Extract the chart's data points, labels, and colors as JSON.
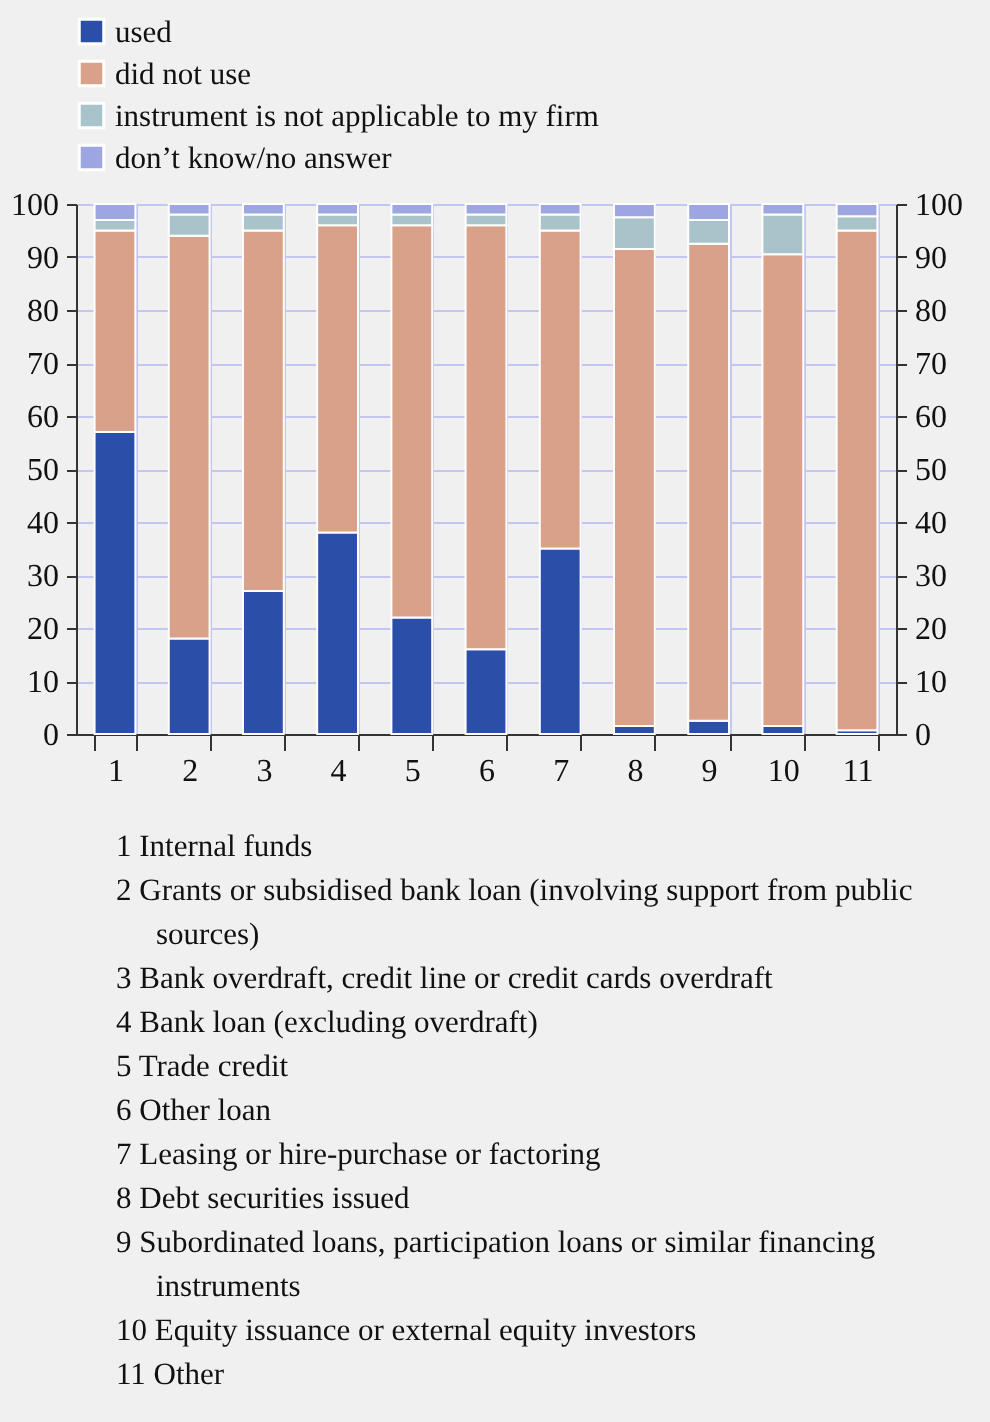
{
  "chart_data": {
    "type": "bar",
    "stacked": true,
    "categories": [
      "1",
      "2",
      "3",
      "4",
      "5",
      "6",
      "7",
      "8",
      "9",
      "10",
      "11"
    ],
    "series": [
      {
        "name": "used",
        "color": "#2b4ea8",
        "values": [
          57,
          18,
          27,
          38,
          22,
          16,
          35,
          1.5,
          2.5,
          1.5,
          0.7
        ]
      },
      {
        "name": "did not use",
        "color": "#d9a08a",
        "values": [
          38,
          76,
          68,
          58,
          74,
          80,
          60,
          90,
          90,
          89,
          94.3
        ]
      },
      {
        "name": "instrument is not applicable to my firm",
        "color": "#a9c3cb",
        "values": [
          2,
          4,
          3,
          2,
          2,
          2,
          3,
          6,
          4.5,
          7.5,
          2.7
        ]
      },
      {
        "name": "don’t know/no answer",
        "color": "#9ea6e2",
        "values": [
          3,
          2,
          2,
          2,
          2,
          2,
          2,
          2.5,
          3,
          2,
          2.3
        ]
      }
    ],
    "ylim": [
      0,
      100
    ],
    "yticks": [
      0,
      10,
      20,
      30,
      40,
      50,
      60,
      70,
      80,
      90,
      100
    ],
    "y2lim": [
      0,
      100
    ],
    "y2ticks": [
      0,
      10,
      20,
      30,
      40,
      50,
      60,
      70,
      80,
      90,
      100
    ],
    "grid": true,
    "legend": "top left",
    "annotations": [
      "1  Internal funds",
      "2  Grants or subsidised bank loan (involving support from public sources)",
      "3  Bank overdraft, credit line or credit cards overdraft",
      "4  Bank loan (excluding overdraft)",
      "5  Trade credit",
      "6  Other loan",
      "7  Leasing or hire-purchase or factoring",
      "8  Debt securities issued",
      "9  Subordinated loans, participation loans or similar financing instruments",
      "10  Equity issuance or external equity investors",
      "11  Other"
    ]
  }
}
